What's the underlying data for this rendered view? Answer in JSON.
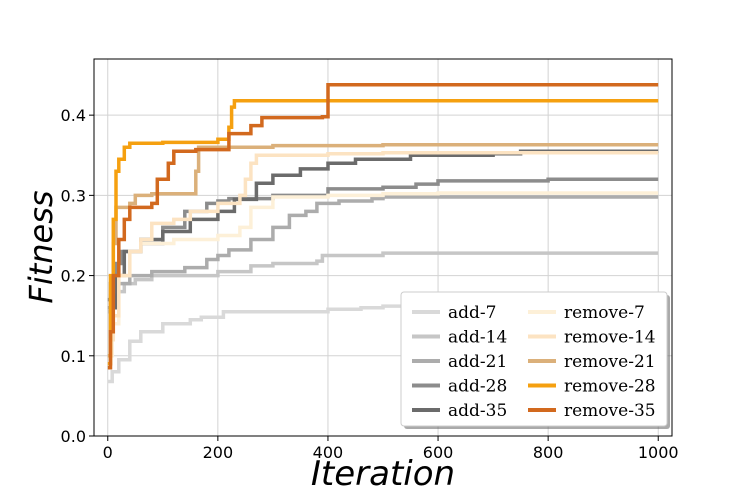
{
  "chart_data": {
    "type": "line",
    "title": "",
    "xlabel": "Iteration",
    "ylabel": "Fitness",
    "xlim": [
      -25,
      1025
    ],
    "ylim": [
      0.0,
      0.47
    ],
    "xticks": [
      0,
      200,
      400,
      600,
      800,
      1000
    ],
    "yticks": [
      0.0,
      0.1,
      0.2,
      0.3,
      0.4
    ],
    "xtick_labels": [
      "0",
      "200",
      "400",
      "600",
      "800",
      "1000"
    ],
    "ytick_labels": [
      "0.0",
      "0.1",
      "0.2",
      "0.3",
      "0.4"
    ],
    "grid": true,
    "legend_position": "bottom-right",
    "series": [
      {
        "name": "add-7",
        "color": "#d9d9d9",
        "points": [
          [
            0,
            0.068
          ],
          [
            8,
            0.08
          ],
          [
            20,
            0.095
          ],
          [
            40,
            0.118
          ],
          [
            60,
            0.13
          ],
          [
            100,
            0.14
          ],
          [
            150,
            0.145
          ],
          [
            170,
            0.148
          ],
          [
            210,
            0.155
          ],
          [
            300,
            0.155
          ],
          [
            400,
            0.158
          ],
          [
            460,
            0.16
          ],
          [
            500,
            0.162
          ],
          [
            600,
            0.163
          ],
          [
            700,
            0.163
          ],
          [
            1000,
            0.163
          ]
        ]
      },
      {
        "name": "add-14",
        "color": "#c6c6c6",
        "points": [
          [
            0,
            0.155
          ],
          [
            6,
            0.17
          ],
          [
            15,
            0.18
          ],
          [
            30,
            0.19
          ],
          [
            50,
            0.195
          ],
          [
            80,
            0.2
          ],
          [
            150,
            0.2
          ],
          [
            160,
            0.2
          ],
          [
            200,
            0.205
          ],
          [
            260,
            0.212
          ],
          [
            300,
            0.215
          ],
          [
            380,
            0.218
          ],
          [
            390,
            0.225
          ],
          [
            500,
            0.228
          ],
          [
            1000,
            0.228
          ]
        ]
      },
      {
        "name": "add-21",
        "color": "#acacac",
        "points": [
          [
            0,
            0.16
          ],
          [
            5,
            0.175
          ],
          [
            15,
            0.19
          ],
          [
            40,
            0.2
          ],
          [
            80,
            0.205
          ],
          [
            140,
            0.21
          ],
          [
            180,
            0.22
          ],
          [
            200,
            0.225
          ],
          [
            220,
            0.232
          ],
          [
            260,
            0.245
          ],
          [
            300,
            0.26
          ],
          [
            330,
            0.275
          ],
          [
            360,
            0.28
          ],
          [
            380,
            0.29
          ],
          [
            400,
            0.29
          ],
          [
            420,
            0.293
          ],
          [
            480,
            0.296
          ],
          [
            500,
            0.298
          ],
          [
            1000,
            0.298
          ]
        ]
      },
      {
        "name": "add-28",
        "color": "#8c8c8c",
        "points": [
          [
            0,
            0.17
          ],
          [
            5,
            0.19
          ],
          [
            15,
            0.215
          ],
          [
            25,
            0.23
          ],
          [
            60,
            0.24
          ],
          [
            100,
            0.26
          ],
          [
            140,
            0.28
          ],
          [
            180,
            0.29
          ],
          [
            200,
            0.293
          ],
          [
            220,
            0.296
          ],
          [
            300,
            0.3
          ],
          [
            400,
            0.308
          ],
          [
            500,
            0.31
          ],
          [
            560,
            0.314
          ],
          [
            600,
            0.318
          ],
          [
            800,
            0.32
          ],
          [
            1000,
            0.32
          ]
        ]
      },
      {
        "name": "add-35",
        "color": "#6b6b6b",
        "points": [
          [
            0,
            0.1
          ],
          [
            5,
            0.16
          ],
          [
            15,
            0.2
          ],
          [
            30,
            0.23
          ],
          [
            60,
            0.245
          ],
          [
            100,
            0.255
          ],
          [
            150,
            0.27
          ],
          [
            200,
            0.28
          ],
          [
            230,
            0.295
          ],
          [
            270,
            0.315
          ],
          [
            300,
            0.325
          ],
          [
            350,
            0.333
          ],
          [
            400,
            0.34
          ],
          [
            450,
            0.345
          ],
          [
            550,
            0.35
          ],
          [
            700,
            0.352
          ],
          [
            750,
            0.355
          ],
          [
            800,
            0.355
          ],
          [
            1000,
            0.355
          ]
        ]
      },
      {
        "name": "remove-7",
        "color": "#fdf0d8",
        "points": [
          [
            0,
            0.1
          ],
          [
            8,
            0.14
          ],
          [
            20,
            0.2
          ],
          [
            40,
            0.23
          ],
          [
            60,
            0.24
          ],
          [
            120,
            0.245
          ],
          [
            200,
            0.25
          ],
          [
            240,
            0.26
          ],
          [
            260,
            0.285
          ],
          [
            300,
            0.298
          ],
          [
            400,
            0.3
          ],
          [
            500,
            0.302
          ],
          [
            600,
            0.303
          ],
          [
            1000,
            0.303
          ]
        ]
      },
      {
        "name": "remove-14",
        "color": "#fce3c2",
        "points": [
          [
            0,
            0.09
          ],
          [
            5,
            0.12
          ],
          [
            10,
            0.15
          ],
          [
            20,
            0.2
          ],
          [
            40,
            0.23
          ],
          [
            60,
            0.245
          ],
          [
            80,
            0.265
          ],
          [
            120,
            0.27
          ],
          [
            150,
            0.28
          ],
          [
            200,
            0.29
          ],
          [
            240,
            0.3
          ],
          [
            250,
            0.32
          ],
          [
            260,
            0.34
          ],
          [
            270,
            0.35
          ],
          [
            300,
            0.35
          ],
          [
            400,
            0.352
          ],
          [
            500,
            0.353
          ],
          [
            1000,
            0.353
          ]
        ]
      },
      {
        "name": "remove-21",
        "color": "#dbb07a",
        "points": [
          [
            0,
            0.1
          ],
          [
            5,
            0.18
          ],
          [
            10,
            0.24
          ],
          [
            15,
            0.285
          ],
          [
            40,
            0.29
          ],
          [
            50,
            0.3
          ],
          [
            80,
            0.302
          ],
          [
            150,
            0.302
          ],
          [
            160,
            0.33
          ],
          [
            165,
            0.36
          ],
          [
            300,
            0.362
          ],
          [
            400,
            0.362
          ],
          [
            500,
            0.363
          ],
          [
            1000,
            0.363
          ]
        ]
      },
      {
        "name": "remove-28",
        "color": "#f5a010",
        "points": [
          [
            0,
            0.09
          ],
          [
            5,
            0.2
          ],
          [
            10,
            0.27
          ],
          [
            15,
            0.33
          ],
          [
            20,
            0.345
          ],
          [
            30,
            0.36
          ],
          [
            40,
            0.365
          ],
          [
            100,
            0.366
          ],
          [
            150,
            0.366
          ],
          [
            200,
            0.37
          ],
          [
            220,
            0.385
          ],
          [
            225,
            0.41
          ],
          [
            230,
            0.418
          ],
          [
            300,
            0.418
          ],
          [
            1000,
            0.418
          ]
        ]
      },
      {
        "name": "remove-35",
        "color": "#d2691e",
        "points": [
          [
            0,
            0.085
          ],
          [
            5,
            0.13
          ],
          [
            10,
            0.2
          ],
          [
            20,
            0.245
          ],
          [
            30,
            0.27
          ],
          [
            40,
            0.285
          ],
          [
            80,
            0.29
          ],
          [
            90,
            0.32
          ],
          [
            110,
            0.34
          ],
          [
            120,
            0.355
          ],
          [
            160,
            0.357
          ],
          [
            220,
            0.377
          ],
          [
            260,
            0.387
          ],
          [
            280,
            0.397
          ],
          [
            390,
            0.398
          ],
          [
            400,
            0.438
          ],
          [
            1000,
            0.438
          ]
        ]
      }
    ]
  }
}
